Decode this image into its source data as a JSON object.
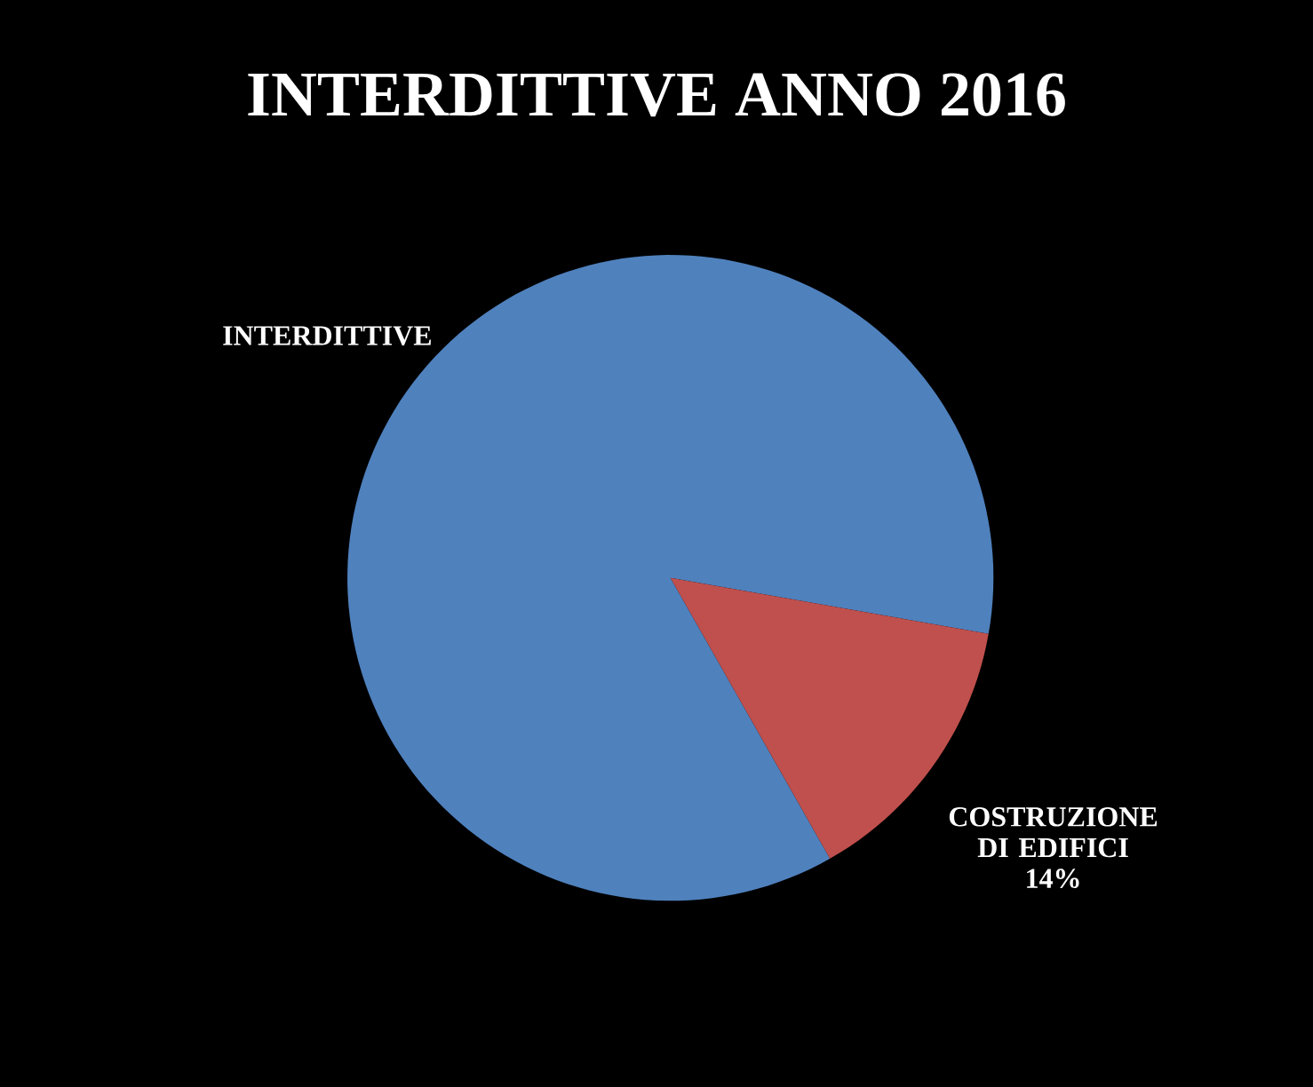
{
  "chart_data": {
    "type": "pie",
    "title": "INTERDITTIVE ANNO 2016",
    "categories": [
      "INTERDITTIVE",
      "COSTRUZIONE DI EDIFICI"
    ],
    "values": [
      86,
      14
    ],
    "colors": [
      "#4f81bd",
      "#c0504d"
    ],
    "value_labels": [
      null,
      "14%"
    ]
  }
}
